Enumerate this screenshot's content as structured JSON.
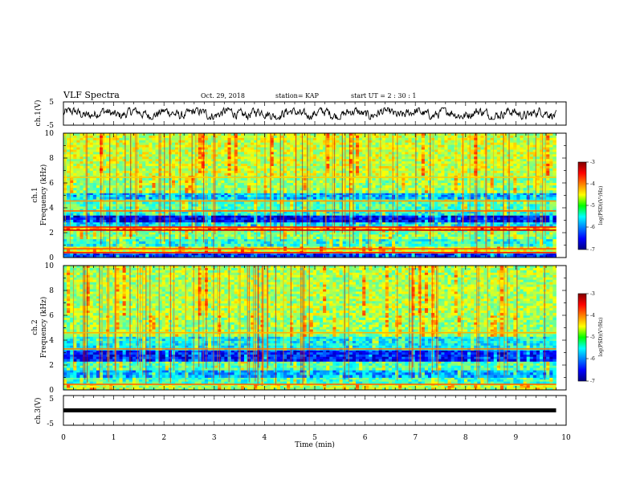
{
  "header": {
    "title": "VLF Spectra",
    "date": "Oct. 29, 2018",
    "station": "station= KAP",
    "start": "start  UT  =   2  : 30 : 1"
  },
  "chart_data": [
    {
      "type": "line",
      "panel": "ch1-waveform",
      "ylabel": "ch.1(V)",
      "xlim": [
        0,
        10
      ],
      "ylim": [
        -5,
        5
      ],
      "yticks": [
        "5",
        "-5"
      ],
      "trace_color": "#000000",
      "trace_note_values": {
        "x_start": 0,
        "x_end": 9.8,
        "amplitude_range": [
          -2.5,
          2.5
        ]
      }
    },
    {
      "type": "heatmap",
      "panel": "ch1-spectrogram",
      "ylabel": "ch.1\nFrequency (kHz)",
      "ylabel_lines": [
        "ch.1",
        "Frequency (kHz)"
      ],
      "xlim": [
        0,
        10
      ],
      "ylim": [
        0,
        10
      ],
      "yticks": [
        "0",
        "2",
        "4",
        "6",
        "8",
        "10"
      ],
      "data_x_end": 9.8,
      "colorbar": {
        "label": "log(PSD)(V²/Hz)",
        "range": [
          -7,
          -3
        ],
        "ticks": [
          "-3",
          "-4",
          "-5",
          "-6",
          "-7"
        ]
      },
      "bands_khz": [
        {
          "lo": 0.0,
          "hi": 0.35,
          "level": -6.3
        },
        {
          "lo": 0.35,
          "hi": 0.9,
          "level": -4.6
        },
        {
          "lo": 0.9,
          "hi": 1.5,
          "level": -5.4
        },
        {
          "lo": 1.5,
          "hi": 2.2,
          "level": -5.0
        },
        {
          "lo": 2.2,
          "hi": 2.5,
          "level": -4.2
        },
        {
          "lo": 2.5,
          "hi": 2.85,
          "level": -5.6
        },
        {
          "lo": 2.85,
          "hi": 3.4,
          "level": -6.5
        },
        {
          "lo": 3.4,
          "hi": 3.7,
          "level": -5.4
        },
        {
          "lo": 3.7,
          "hi": 4.7,
          "level": -5.2
        },
        {
          "lo": 4.7,
          "hi": 5.2,
          "level": -5.8
        },
        {
          "lo": 5.2,
          "hi": 6.6,
          "level": -4.9
        },
        {
          "lo": 6.6,
          "hi": 10.0,
          "level": -4.7
        }
      ],
      "lines_khz": [
        {
          "f": 2.2,
          "level": -3.3
        },
        {
          "f": 2.45,
          "level": -3.6
        },
        {
          "f": 3.75,
          "level": -3.9
        },
        {
          "f": 4.55,
          "level": -4.1
        },
        {
          "f": 6.45,
          "level": -4.3
        },
        {
          "f": 0.4,
          "level": -3.6
        },
        {
          "f": 0.7,
          "level": -3.8
        }
      ]
    },
    {
      "type": "heatmap",
      "panel": "ch2-spectrogram",
      "ylabel": "ch.2\nFrequency (kHz)",
      "ylabel_lines": [
        "ch.2",
        "Frequency (kHz)"
      ],
      "xlim": [
        0,
        10
      ],
      "ylim": [
        0,
        10
      ],
      "yticks": [
        "0",
        "2",
        "4",
        "6",
        "8",
        "10"
      ],
      "data_x_end": 9.8,
      "colorbar": {
        "label": "log(PSD)(V²/Hz)",
        "range": [
          -7,
          -3
        ],
        "ticks": [
          "-3",
          "-4",
          "-5",
          "-6",
          "-7"
        ]
      },
      "bands_khz": [
        {
          "lo": 0.0,
          "hi": 0.5,
          "level": -4.8
        },
        {
          "lo": 0.5,
          "hi": 1.0,
          "level": -5.3
        },
        {
          "lo": 1.0,
          "hi": 1.6,
          "level": -5.8
        },
        {
          "lo": 1.6,
          "hi": 2.3,
          "level": -5.2
        },
        {
          "lo": 2.3,
          "hi": 3.2,
          "level": -6.4
        },
        {
          "lo": 3.2,
          "hi": 4.3,
          "level": -5.5
        },
        {
          "lo": 4.3,
          "hi": 6.0,
          "level": -4.9
        },
        {
          "lo": 6.0,
          "hi": 10.0,
          "level": -4.8
        }
      ],
      "lines_khz": [
        {
          "f": 0.45,
          "level": -3.9
        },
        {
          "f": 3.3,
          "level": -4.0
        },
        {
          "f": 4.6,
          "level": -4.2
        }
      ]
    },
    {
      "type": "line",
      "panel": "ch3-waveform",
      "ylabel": "ch.3(V)",
      "xlim": [
        0,
        10
      ],
      "ylim": [
        -5,
        5
      ],
      "yticks": [
        "5",
        "-5"
      ],
      "constant_value": 0,
      "trace_note_values": {
        "x_start": 0,
        "x_end": 9.8
      },
      "xlabel": "Time (min)",
      "xticks": [
        "0",
        "1",
        "2",
        "3",
        "4",
        "5",
        "6",
        "7",
        "8",
        "9",
        "10"
      ]
    }
  ]
}
